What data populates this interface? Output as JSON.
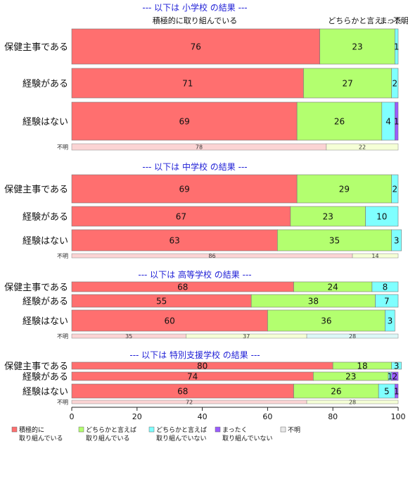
{
  "chart_data": {
    "type": "bar",
    "orientation": "horizontal-stacked-100",
    "xlim": [
      0,
      100
    ],
    "x_ticks": [
      "0",
      "20",
      "40",
      "60",
      "80",
      "100"
    ],
    "header_labels": [
      "積極的に取り組んでいる",
      "どちらかと言え...",
      "まった...",
      "不明"
    ],
    "colors": {
      "positive": "#ff6f6f",
      "somewhat_positive": "#b3ff6f",
      "somewhat_negative": "#7fffff",
      "negative": "#9a5cff",
      "unknown": "#e8e8e8"
    },
    "legend": [
      {
        "key": "positive",
        "lines": [
          "積極的に",
          "取り組んでいる"
        ]
      },
      {
        "key": "somewhat_positive",
        "lines": [
          "どちらかと言えば",
          "取り組んでいる"
        ]
      },
      {
        "key": "somewhat_negative",
        "lines": [
          "どちらかと言えば",
          "取り組んでいない"
        ]
      },
      {
        "key": "negative",
        "lines": [
          "まったく",
          "取り組んでいない"
        ]
      },
      {
        "key": "unknown",
        "lines": [
          "不明"
        ]
      }
    ],
    "sections": [
      {
        "title": "--- 以下は 小学校 の結果 ---",
        "rows": [
          {
            "label": "保健主事である",
            "values": [
              76,
              23,
              1,
              0
            ]
          },
          {
            "label": "経験がある",
            "values": [
              71,
              27,
              2,
              0
            ]
          },
          {
            "label": "経験はない",
            "values": [
              69,
              26,
              4,
              1
            ]
          }
        ],
        "nr_label": "不明",
        "nr_values": [
          78,
          22,
          0
        ]
      },
      {
        "title": "--- 以下は 中学校 の結果 ---",
        "rows": [
          {
            "label": "保健主事である",
            "values": [
              69,
              29,
              2,
              0
            ]
          },
          {
            "label": "経験がある",
            "values": [
              67,
              23,
              10,
              0
            ]
          },
          {
            "label": "経験はない",
            "values": [
              63,
              35,
              3,
              0
            ]
          }
        ],
        "nr_label": "不明",
        "nr_values": [
          86,
          14,
          0
        ]
      },
      {
        "title": "--- 以下は 高等学校 の結果 ---",
        "rows": [
          {
            "label": "保健主事である",
            "values": [
              68,
              24,
              8,
              0
            ]
          },
          {
            "label": "経験がある",
            "values": [
              55,
              38,
              7,
              0
            ]
          },
          {
            "label": "経験はない",
            "values": [
              60,
              36,
              3,
              0
            ]
          }
        ],
        "nr_label": "不明",
        "nr_values": [
          35,
          37,
          28
        ]
      },
      {
        "title": "--- 以下は 特別支援学校 の結果 ---",
        "rows": [
          {
            "label": "保健主事である",
            "values": [
              80,
              18,
              3,
              0
            ]
          },
          {
            "label": "経験がある",
            "values": [
              74,
              23,
              1,
              2
            ]
          },
          {
            "label": "経験はない",
            "values": [
              68,
              26,
              5,
              1
            ]
          }
        ],
        "nr_label": "不明",
        "nr_values": [
          72,
          28,
          0
        ]
      }
    ]
  }
}
